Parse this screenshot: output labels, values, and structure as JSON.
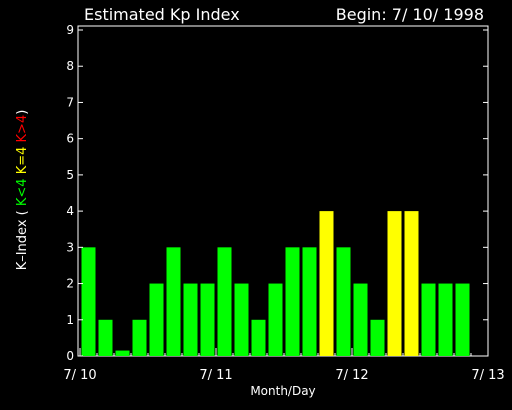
{
  "chart_data": {
    "type": "bar",
    "title_left": "Estimated Kp Index",
    "title_right": "Begin: 7/ 10/ 1998",
    "xlabel": "Month/Day",
    "ylabel_parts": [
      {
        "text": "K–Index  (",
        "color": "#ffffff"
      },
      {
        "text": "K<4",
        "color": "#00ff00"
      },
      {
        "text": "K=4",
        "color": "#ffff00"
      },
      {
        "text": "K>4",
        "color": "#ff0000"
      },
      {
        "text": ")",
        "color": "#ffffff"
      }
    ],
    "ylim": [
      0,
      9
    ],
    "yticks": [
      "0",
      "1",
      "2",
      "3",
      "4",
      "5",
      "6",
      "7",
      "8",
      "9"
    ],
    "xlim": [
      0,
      24
    ],
    "xticks": [
      {
        "label": "7/ 10",
        "pos": 0
      },
      {
        "label": "7/ 11",
        "pos": 8
      },
      {
        "label": "7/ 12",
        "pos": 16
      },
      {
        "label": "7/ 13",
        "pos": 24
      }
    ],
    "values": [
      3,
      1,
      0.15,
      1,
      2,
      3,
      2,
      2,
      3,
      2,
      1,
      2,
      3,
      3,
      4,
      3,
      2,
      1,
      4,
      4,
      2,
      2,
      2
    ],
    "colors": {
      "below": "#00ff00",
      "equal": "#ffff00",
      "above": "#ff0000"
    },
    "grid": false
  }
}
